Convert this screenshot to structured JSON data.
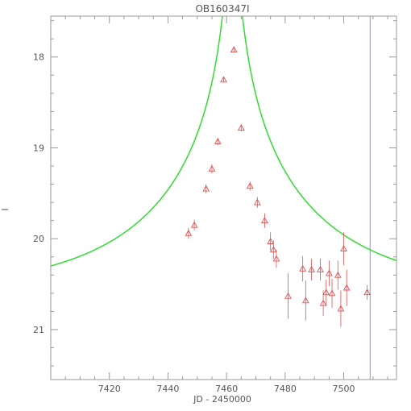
{
  "chart_data": {
    "type": "scatter",
    "title": "OB160347I",
    "xlabel": "JD - 2450000",
    "ylabel": "I",
    "xlim": [
      7400,
      7518
    ],
    "ylim": [
      21.55,
      17.55
    ],
    "y_inverted": true,
    "grid": false,
    "x_ticks": [
      7420,
      7440,
      7460,
      7480,
      7500
    ],
    "y_ticks": [
      18,
      19,
      20,
      21
    ],
    "colors": {
      "points": "#e05050",
      "model": "#30dd30",
      "marker_line": "#9090e0",
      "axes": "#999999"
    },
    "model": {
      "name": "",
      "params": {
        "t0": 7462.0,
        "u0": 0.02,
        "tE": 60.0,
        "baseline_mag": 20.6
      }
    },
    "vertical_line_x": 7509,
    "points": [
      {
        "x": 7447.0,
        "y": 19.94,
        "err": 0.06
      },
      {
        "x": 7449.0,
        "y": 19.85,
        "err": 0.06
      },
      {
        "x": 7453.0,
        "y": 19.45,
        "err": 0.05
      },
      {
        "x": 7455.0,
        "y": 19.23,
        "err": 0.05
      },
      {
        "x": 7457.0,
        "y": 18.93,
        "err": 0.04
      },
      {
        "x": 7459.0,
        "y": 18.25,
        "err": 0.03
      },
      {
        "x": 7462.5,
        "y": 17.92,
        "err": 0.03
      },
      {
        "x": 7465.0,
        "y": 18.78,
        "err": 0.04
      },
      {
        "x": 7468.0,
        "y": 19.42,
        "err": 0.05
      },
      {
        "x": 7470.5,
        "y": 19.6,
        "err": 0.06
      },
      {
        "x": 7473.0,
        "y": 19.8,
        "err": 0.08
      },
      {
        "x": 7475.0,
        "y": 20.03,
        "err": 0.1
      },
      {
        "x": 7476.0,
        "y": 20.12,
        "err": 0.1
      },
      {
        "x": 7477.0,
        "y": 20.22,
        "err": 0.1
      },
      {
        "x": 7481.0,
        "y": 20.63,
        "err": 0.25
      },
      {
        "x": 7486.0,
        "y": 20.33,
        "err": 0.14
      },
      {
        "x": 7487.0,
        "y": 20.68,
        "err": 0.22
      },
      {
        "x": 7489.0,
        "y": 20.34,
        "err": 0.12
      },
      {
        "x": 7492.0,
        "y": 20.34,
        "err": 0.12
      },
      {
        "x": 7493.0,
        "y": 20.71,
        "err": 0.14
      },
      {
        "x": 7494.0,
        "y": 20.59,
        "err": 0.14
      },
      {
        "x": 7495.0,
        "y": 20.38,
        "err": 0.14
      },
      {
        "x": 7496.0,
        "y": 20.6,
        "err": 0.16
      },
      {
        "x": 7498.0,
        "y": 20.4,
        "err": 0.16
      },
      {
        "x": 7499.0,
        "y": 20.77,
        "err": 0.2
      },
      {
        "x": 7500.0,
        "y": 20.11,
        "err": 0.18
      },
      {
        "x": 7501.0,
        "y": 20.54,
        "err": 0.2
      },
      {
        "x": 7508.0,
        "y": 20.59,
        "err": 0.08
      }
    ]
  }
}
